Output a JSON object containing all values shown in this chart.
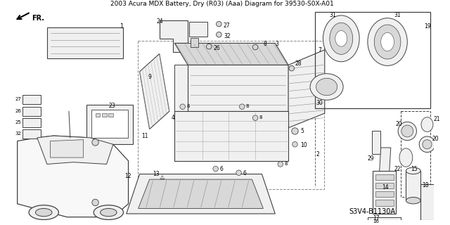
{
  "title": "2003 Acura MDX Battery, Dry (R03) (Aaa) Diagram for 39530-S0X-A01",
  "bg_color": "#ffffff",
  "diagram_code": "S3V4-B1130A",
  "fig_width": 6.4,
  "fig_height": 3.2,
  "dpi": 100,
  "line_color": "#404040",
  "light_fill": "#f0f0f0",
  "mid_fill": "#d8d8d8",
  "dark_fill": "#b0b0b0"
}
